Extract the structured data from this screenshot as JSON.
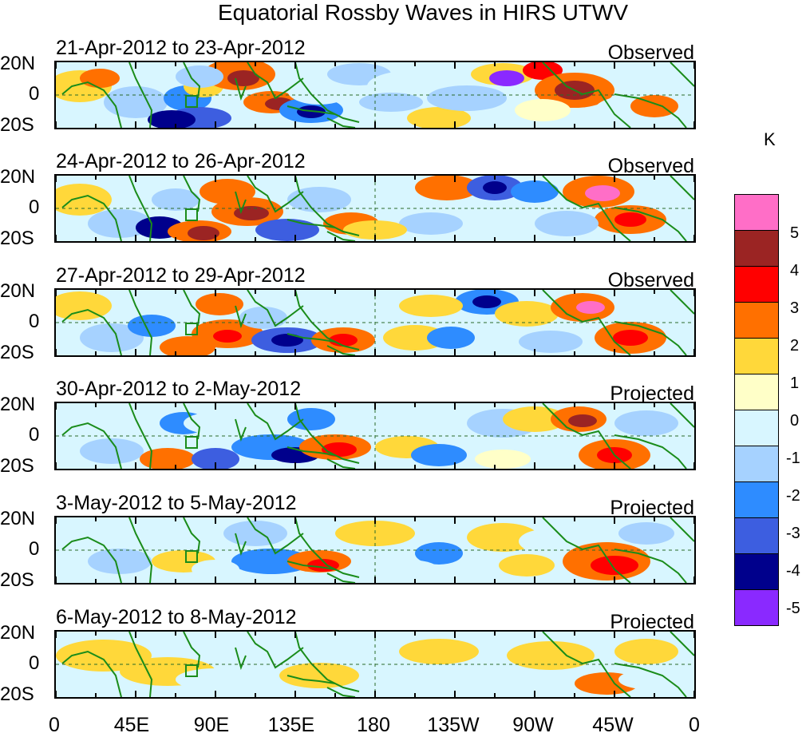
{
  "title": "Equatorial Rossby Waves in HIRS UTWV",
  "panels": [
    {
      "dates": "21-Apr-2012 to 23-Apr-2012",
      "type": "Observed"
    },
    {
      "dates": "24-Apr-2012 to 26-Apr-2012",
      "type": "Observed"
    },
    {
      "dates": "27-Apr-2012 to 29-Apr-2012",
      "type": "Observed"
    },
    {
      "dates": "30-Apr-2012 to 2-May-2012",
      "type": "Projected"
    },
    {
      "dates": "3-May-2012 to 5-May-2012",
      "type": "Projected"
    },
    {
      "dates": "6-May-2012 to 8-May-2012",
      "type": "Projected"
    }
  ],
  "lat_labels": [
    "20N",
    "0",
    "20S"
  ],
  "lon_labels": [
    "0",
    "45E",
    "90E",
    "135E",
    "180",
    "135W",
    "90W",
    "45W",
    "0"
  ],
  "colorbar": {
    "unit": "K",
    "labels": [
      "5",
      "4",
      "3",
      "2",
      "1",
      "0",
      "-1",
      "-2",
      "-3",
      "-4",
      "-5"
    ],
    "colors": [
      "#ff6ec7",
      "#9b2423",
      "#ff0000",
      "#ff7000",
      "#ffd83a",
      "#ffffc8",
      "#d8f6ff",
      "#a6d2ff",
      "#2e8cff",
      "#3d5ee0",
      "#00008c",
      "#8a29ff"
    ]
  },
  "colors": {
    "coast": "#1a8c1a",
    "dash": "#2a6a2a"
  }
}
